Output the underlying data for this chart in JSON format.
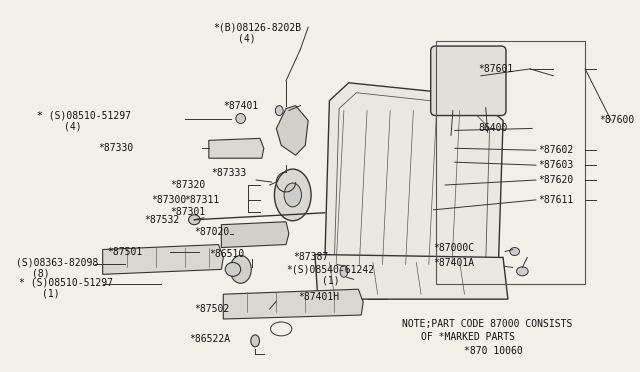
{
  "bg_color": "#f0efe8",
  "lc": "#333333",
  "fc": "#111111",
  "note_line1": "NOTE;PART CODE 87000 CONSISTS",
  "note_line2": "OF *MARKED PARTS",
  "note_line3": "*870 10060",
  "fs": 7.0,
  "fs_note": 7.0
}
